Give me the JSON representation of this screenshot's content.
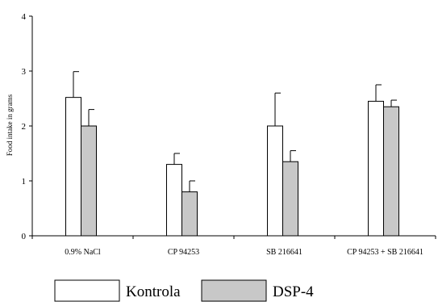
{
  "chart_data": {
    "type": "bar",
    "title": "",
    "xlabel": "",
    "ylabel": "Food intake in grams",
    "ylim": [
      0,
      4
    ],
    "yticks": [
      0,
      1,
      2,
      3,
      4
    ],
    "categories": [
      "0.9% NaCl",
      "CP 94253",
      "SB 216641",
      "CP 94253 + SB 216641"
    ],
    "series": [
      {
        "name": "Kontrola",
        "values": [
          2.52,
          1.3,
          2.0,
          2.45
        ],
        "errors": [
          0.47,
          0.2,
          0.6,
          0.3
        ],
        "color": "#ffffff"
      },
      {
        "name": "DSP-4",
        "values": [
          2.0,
          0.8,
          1.35,
          2.35
        ],
        "errors": [
          0.3,
          0.2,
          0.2,
          0.12
        ],
        "color": "#c8c8c8"
      }
    ],
    "legend_position": "bottom"
  }
}
